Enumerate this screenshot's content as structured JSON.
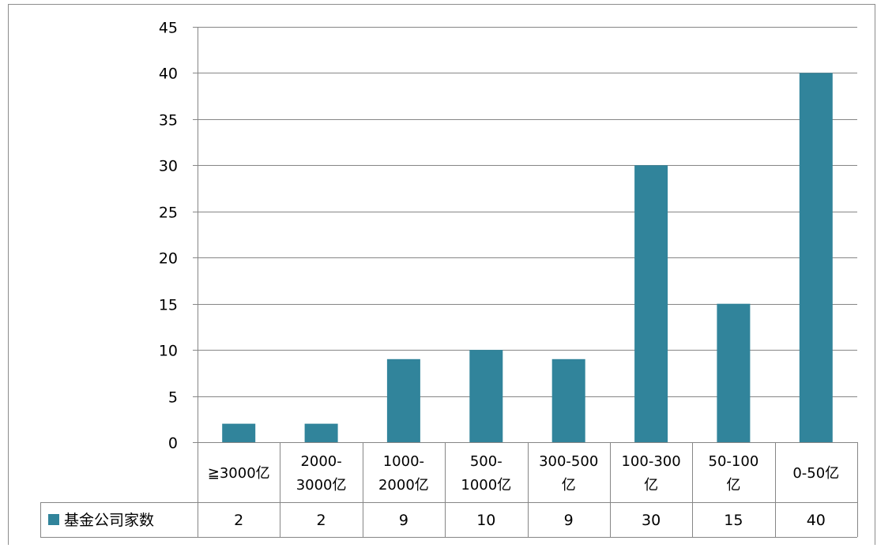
{
  "chart_data": {
    "type": "bar",
    "categories": [
      [
        "≧3000亿"
      ],
      [
        "2000-",
        "3000亿"
      ],
      [
        "1000-",
        "2000亿"
      ],
      [
        "500-",
        "1000亿"
      ],
      [
        "300-500",
        "亿"
      ],
      [
        "100-300",
        "亿"
      ],
      [
        "50-100",
        "亿"
      ],
      [
        "0-50亿"
      ]
    ],
    "series": [
      {
        "name": "基金公司家数",
        "values": [
          2,
          2,
          9,
          10,
          9,
          30,
          15,
          40
        ],
        "color": "#31849b"
      }
    ],
    "ylim": [
      0,
      45
    ],
    "yticks": [
      0,
      5,
      10,
      15,
      20,
      25,
      30,
      35,
      40,
      45
    ],
    "grid": true,
    "data_table": true,
    "legend": "in-data-table"
  }
}
